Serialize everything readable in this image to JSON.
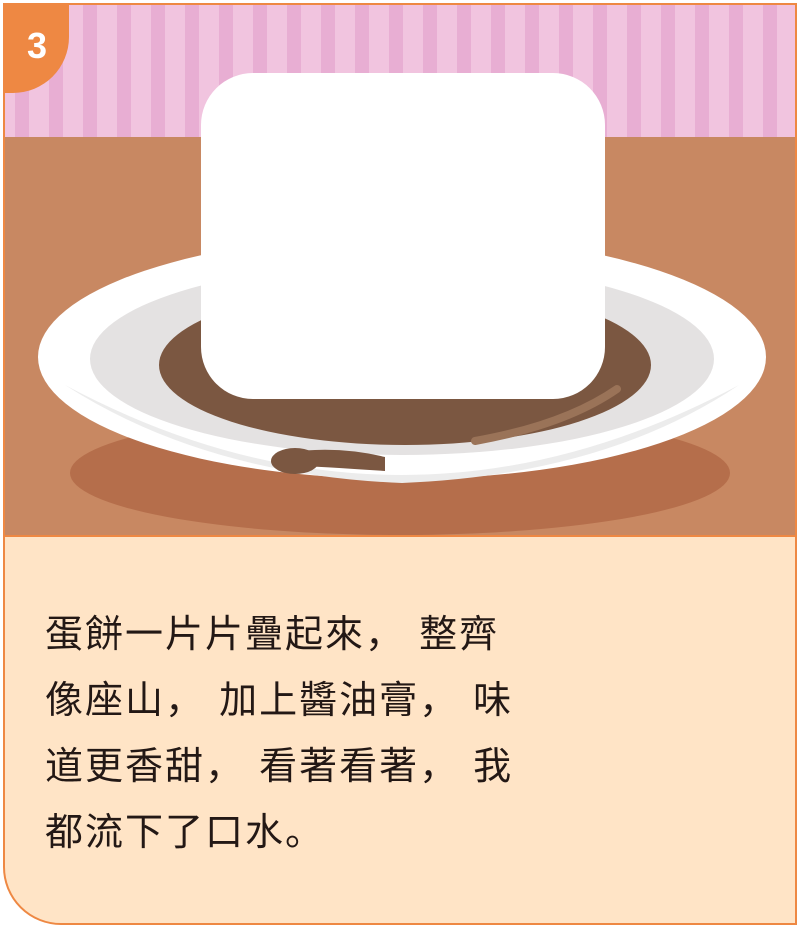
{
  "step_number": "3",
  "story_lines": [
    "蛋餅一片片疊起來， 整齊",
    "像座山， 加上醬油膏， 味",
    "道更香甜， 看著看著， 我",
    "都流下了口水。"
  ],
  "colors": {
    "accent": "#ee8843",
    "wall_pink": "#f1c4df",
    "wall_stripe": "#e7a8cf",
    "table": "#c88862",
    "panel": "#ffe4c6",
    "sauce": "#7b5741",
    "tofu": "#ffffff"
  }
}
